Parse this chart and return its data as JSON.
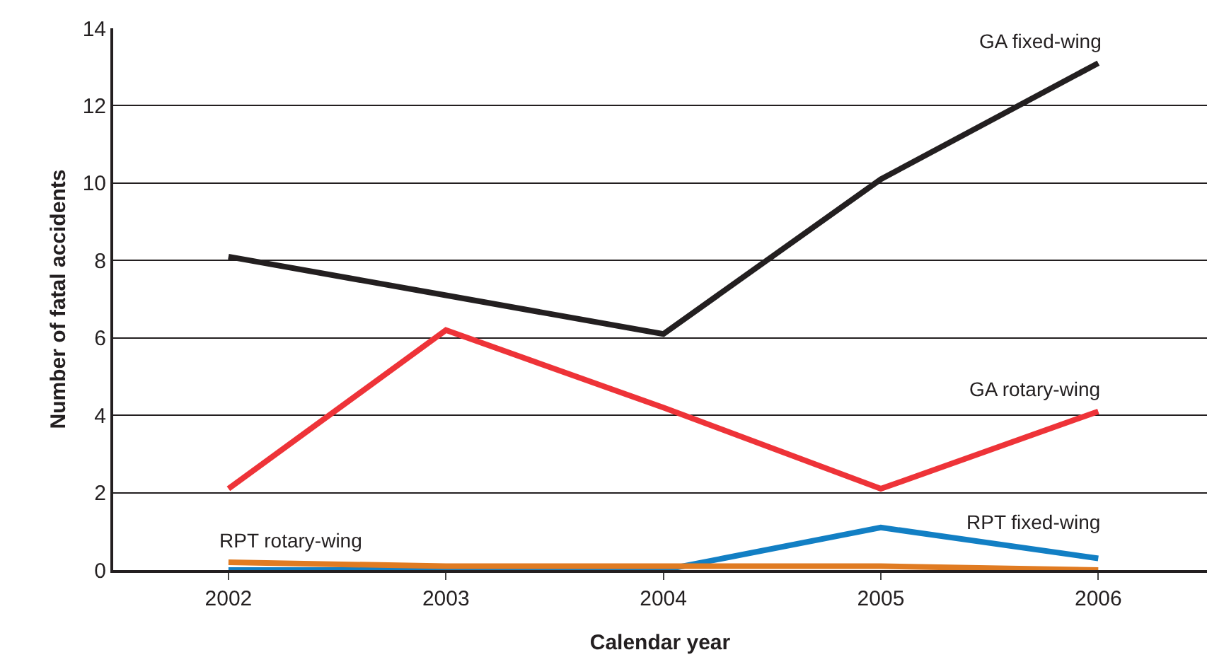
{
  "chart_data": {
    "type": "line",
    "xlabel": "Calendar year",
    "ylabel": "Number of fatal accidents",
    "categories": [
      "2002",
      "2003",
      "2004",
      "2005",
      "2006"
    ],
    "series": [
      {
        "name": "GA fixed-wing",
        "color": "#231f20",
        "values": [
          8.1,
          7.1,
          6.1,
          10.1,
          13.1
        ]
      },
      {
        "name": "GA rotary-wing",
        "color": "#ee3338",
        "values": [
          2.1,
          6.2,
          4.2,
          2.1,
          4.1
        ]
      },
      {
        "name": "RPT fixed-wing",
        "color": "#127fc4",
        "values": [
          0,
          0,
          0,
          1.1,
          0.3
        ]
      },
      {
        "name": "RPT rotary-wing",
        "color": "#e07b22",
        "values": [
          0.2,
          0.1,
          0.1,
          0.1,
          0
        ]
      }
    ],
    "ylim": [
      0,
      14
    ],
    "yticks": [
      0,
      2,
      4,
      6,
      8,
      10,
      12,
      14
    ],
    "grid": "y",
    "legend": false,
    "marker": "none",
    "line_style": "solid"
  }
}
